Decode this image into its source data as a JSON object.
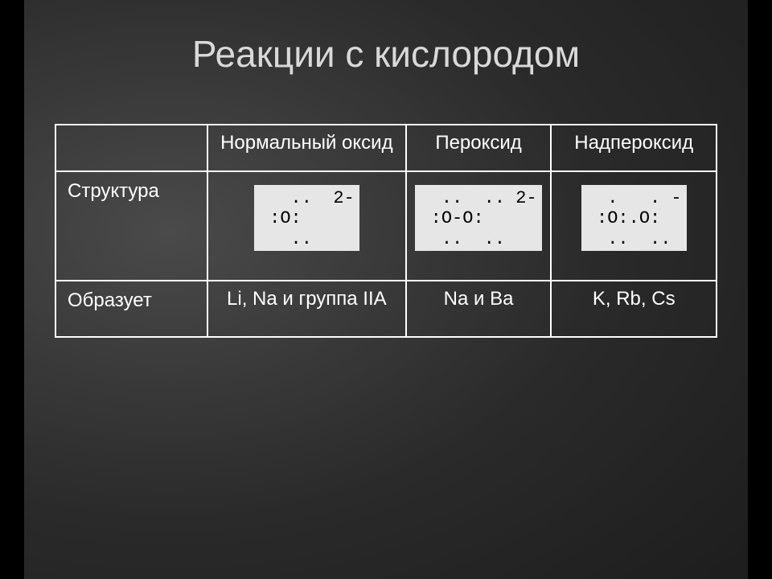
{
  "title": "Реакции с кислородом",
  "colors": {
    "page_bg": "#000000",
    "slide_grad_inner": "#4a4a4a",
    "slide_grad_outer": "#1a1a1a",
    "title_color": "#d9d9d9",
    "border_color": "#ffffff",
    "text_color": "#ffffff",
    "struct_bg": "#e6e6e6",
    "struct_text": "#000000"
  },
  "table": {
    "headers": {
      "col0": "",
      "col1": "Нормальный оксид",
      "col2": "Пероксид",
      "col3": "Надпероксид"
    },
    "row_struct": {
      "label": "Структура",
      "oxide": "   ..  2-\n :O:\n   ..",
      "peroxide": "  ..  .. 2-\n :O-O:\n  ..  ..",
      "superoxide": "  .   . -\n :O:.O:\n  ..  .."
    },
    "row_forms": {
      "label": "Образует",
      "oxide": "Li, Na и группа IIA",
      "peroxide": "Na и Ba",
      "superoxide": "K, Rb, Cs"
    }
  }
}
